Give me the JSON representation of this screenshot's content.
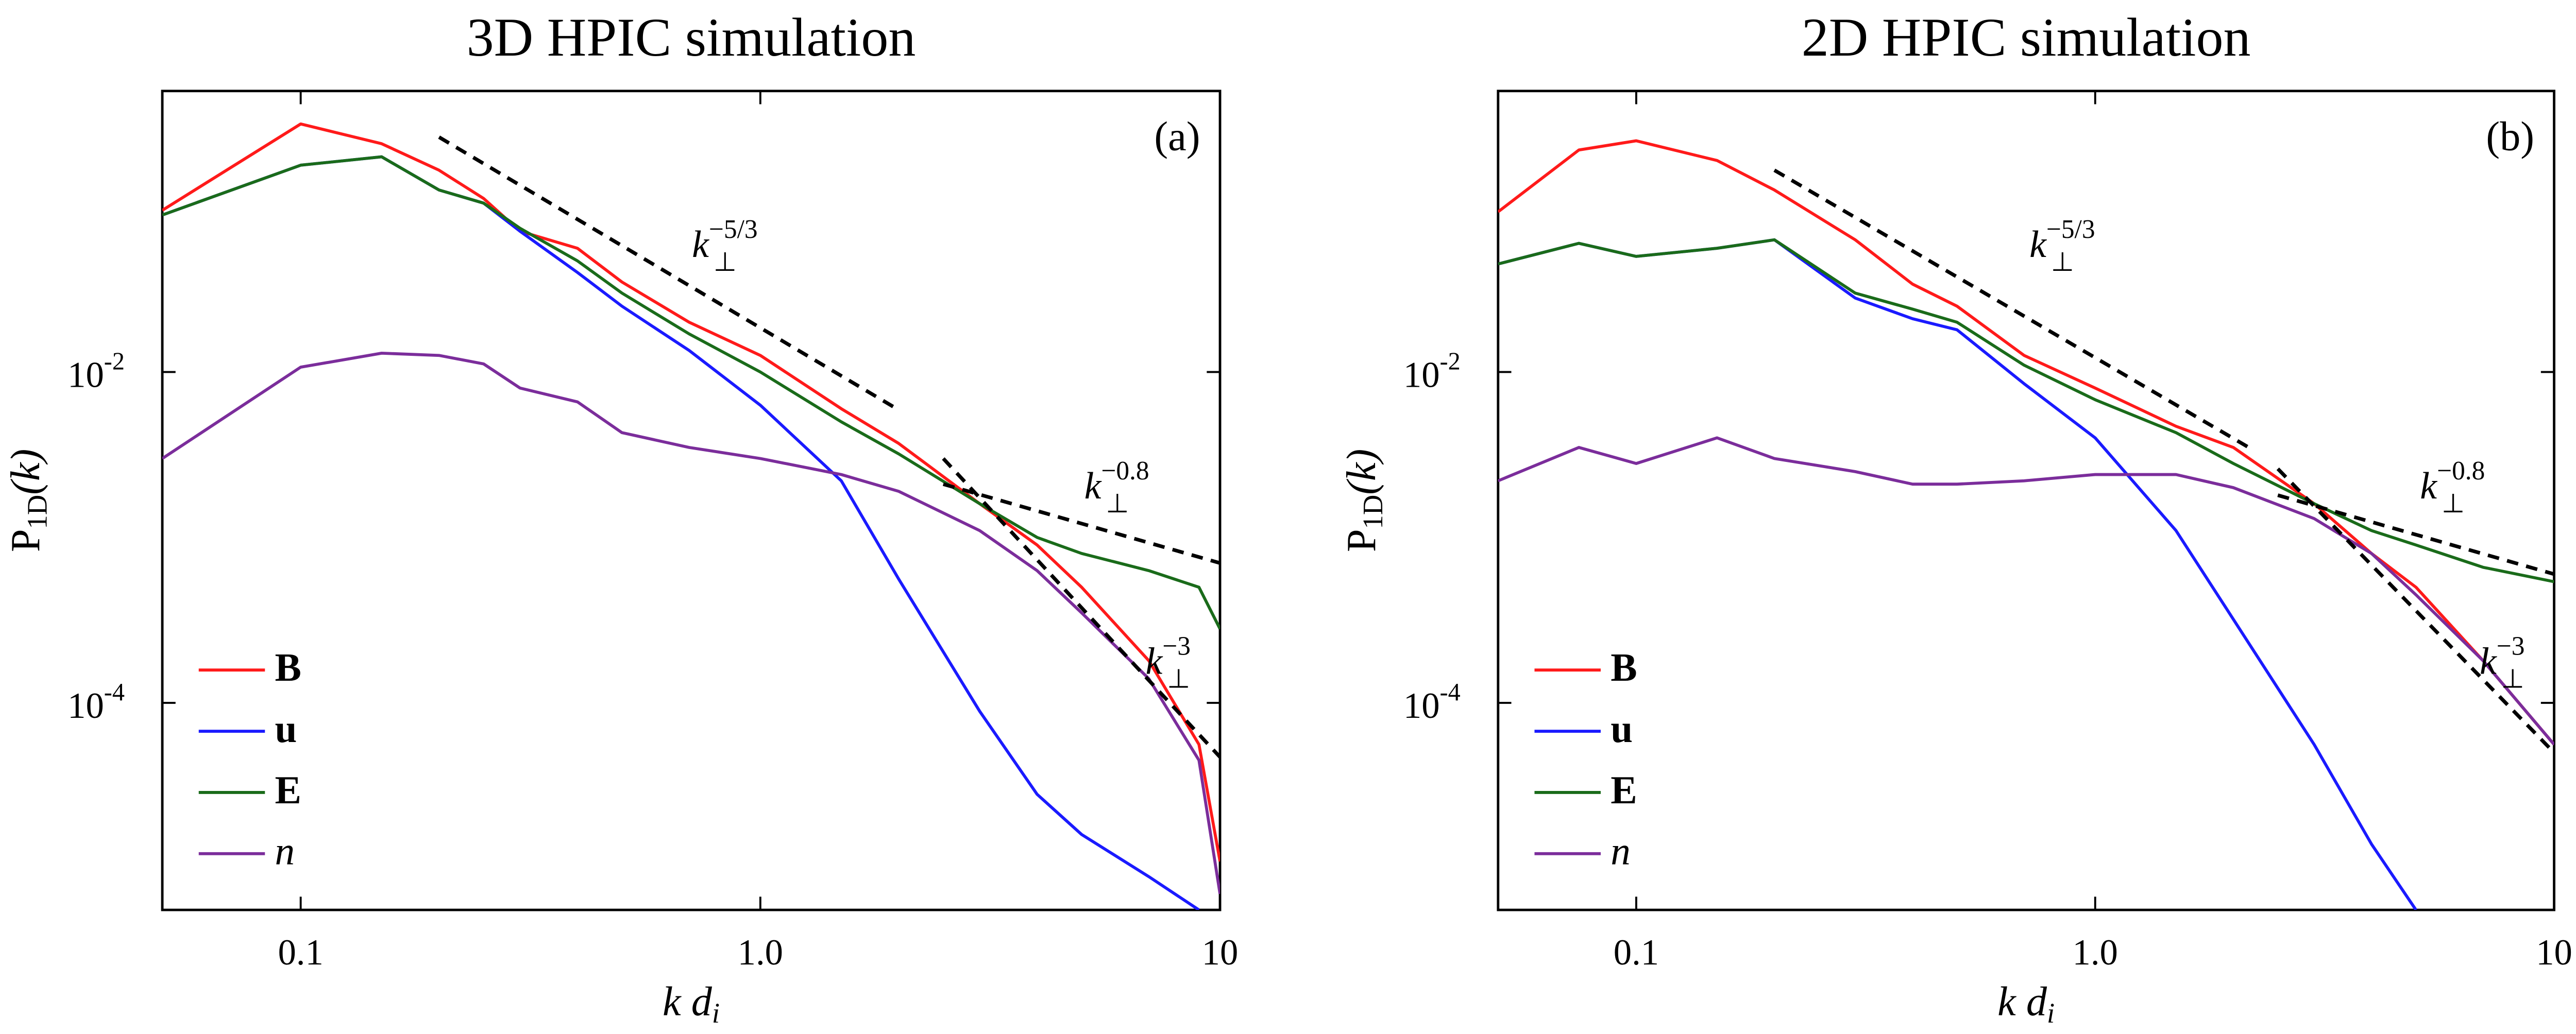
{
  "chart_data": [
    {
      "type": "line",
      "title": "3D HPIC simulation",
      "panel_label": "(a)",
      "xlabel": {
        "text": "k d",
        "sub": "i"
      },
      "ylabel": {
        "text": "P",
        "sub": "1D",
        "rest": "(k)"
      },
      "xscale": "log",
      "yscale": "log",
      "legend": "lower left",
      "xlim": [
        0.05,
        10
      ],
      "xticks": [
        0.1,
        {
          "value": 1,
          "label": "1.0"
        },
        10
      ],
      "ylim": [
        5.6e-06,
        0.5
      ],
      "yticks": [
        {
          "value": 0.0001,
          "label": "10",
          "exponent": "-4"
        },
        {
          "value": 0.01,
          "label": "10",
          "exponent": "-2"
        }
      ],
      "x": [
        0.05,
        0.1,
        0.15,
        0.2,
        0.25,
        0.3,
        0.4,
        0.5,
        0.7,
        1,
        1.5,
        2,
        3,
        4,
        5,
        7,
        9,
        10
      ],
      "series": [
        {
          "name": "B",
          "color": "#ff1a1a",
          "values": [
            0.095,
            0.316,
            0.24,
            0.166,
            0.112,
            0.071,
            0.056,
            0.035,
            0.02,
            0.0126,
            0.006,
            0.0037,
            0.0016,
            0.0009,
            0.0005,
            0.00018,
            5.6e-05,
            1.1e-05
          ]
        },
        {
          "name": "u",
          "color": "#1a1aff",
          "values": [
            0.089,
            0.178,
            0.2,
            0.126,
            0.105,
            0.071,
            0.04,
            0.025,
            0.0135,
            0.0063,
            0.0022,
            0.00056,
            8.9e-05,
            2.8e-05,
            1.6e-05,
            8.9e-06,
            5.6e-06,
            null
          ]
        },
        {
          "name": "E",
          "color": "#1a6b1a",
          "values": [
            0.089,
            0.178,
            0.2,
            0.126,
            0.105,
            0.074,
            0.047,
            0.03,
            0.017,
            0.01,
            0.005,
            0.0032,
            0.0016,
            0.001,
            0.0008,
            0.00063,
            0.0005,
            0.00028
          ]
        },
        {
          "name": "n",
          "color": "#7b2d9b",
          "values": [
            0.003,
            0.0107,
            0.013,
            0.0126,
            0.0112,
            0.008,
            0.0066,
            0.0043,
            0.0035,
            0.003,
            0.0024,
            0.0019,
            0.0011,
            0.00063,
            0.00035,
            0.00014,
            4.5e-05,
            7e-06
          ]
        }
      ],
      "fits": [
        {
          "label": {
            "text": "k",
            "sub": "⊥",
            "sup": "−5/3"
          },
          "x": [
            0.2,
            2
          ],
          "values": [
            0.263,
            0.0059
          ]
        },
        {
          "label": {
            "text": "k",
            "sub": "⊥",
            "sup": "−0.8"
          },
          "x": [
            2.5,
            10
          ],
          "values": [
            0.0021,
            0.0007
          ]
        },
        {
          "label": {
            "text": "k",
            "sub": "⊥",
            "sup": "−3"
          },
          "x": [
            2.5,
            10
          ],
          "values": [
            0.003,
            4.7e-05
          ]
        }
      ]
    },
    {
      "type": "line",
      "title": "2D HPIC simulation",
      "panel_label": "(b)",
      "xlabel": {
        "text": "k d",
        "sub": "i"
      },
      "ylabel": {
        "text": "P",
        "sub": "1D",
        "rest": "(k)"
      },
      "xscale": "log",
      "yscale": "log",
      "legend": "lower left",
      "xlim": [
        0.05,
        10
      ],
      "xticks": [
        0.1,
        {
          "value": 1,
          "label": "1.0"
        },
        10
      ],
      "ylim": [
        5.6e-06,
        0.5
      ],
      "yticks": [
        {
          "value": 0.0001,
          "label": "10",
          "exponent": "-4"
        },
        {
          "value": 0.01,
          "label": "10",
          "exponent": "-2"
        }
      ],
      "x": [
        0.05,
        0.075,
        0.1,
        0.15,
        0.2,
        0.3,
        0.4,
        0.5,
        0.7,
        1,
        1.5,
        2,
        3,
        4,
        5,
        7,
        10
      ],
      "series": [
        {
          "name": "B",
          "color": "#ff1a1a",
          "values": [
            0.093,
            0.22,
            0.25,
            0.19,
            0.126,
            0.063,
            0.034,
            0.025,
            0.0126,
            0.008,
            0.0047,
            0.0035,
            0.0016,
            0.0008,
            0.0005,
            0.00018,
            5.6e-05
          ]
        },
        {
          "name": "u",
          "color": "#1a1aff",
          "values": [
            0.045,
            0.06,
            0.05,
            0.056,
            0.063,
            0.028,
            0.021,
            0.018,
            0.0085,
            0.004,
            0.0011,
            0.00032,
            5.6e-05,
            1.4e-05,
            5.6e-06,
            null,
            null
          ]
        },
        {
          "name": "E",
          "color": "#1a6b1a",
          "values": [
            0.045,
            0.06,
            0.05,
            0.056,
            0.063,
            0.03,
            0.024,
            0.02,
            0.011,
            0.0068,
            0.0043,
            0.0028,
            0.0016,
            0.0011,
            0.0009,
            0.00066,
            0.00054
          ]
        },
        {
          "name": "n",
          "color": "#7b2d9b",
          "values": [
            0.0022,
            0.0035,
            0.0028,
            0.004,
            0.003,
            0.0025,
            0.0021,
            0.0021,
            0.0022,
            0.0024,
            0.0024,
            0.002,
            0.0013,
            0.0008,
            0.00045,
            0.00018,
            5.6e-05
          ]
        }
      ],
      "fits": [
        {
          "label": {
            "text": "k",
            "sub": "⊥",
            "sup": "−5/3"
          },
          "x": [
            0.2,
            2.2
          ],
          "values": [
            0.166,
            0.0034
          ]
        },
        {
          "label": {
            "text": "k",
            "sub": "⊥",
            "sup": "−0.8"
          },
          "x": [
            2.5,
            10
          ],
          "values": [
            0.0018,
            0.0006
          ]
        },
        {
          "label": {
            "text": "k",
            "sub": "⊥",
            "sup": "−3"
          },
          "x": [
            2.5,
            10
          ],
          "values": [
            0.0026,
            5e-05
          ]
        }
      ]
    }
  ]
}
